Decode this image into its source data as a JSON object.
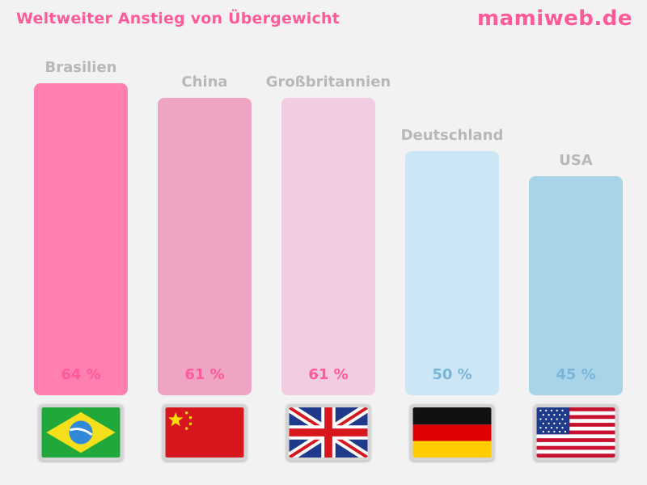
{
  "header": {
    "title": "Weltweiter Anstieg von Übergewicht",
    "brand": "mamiweb.de"
  },
  "chart_data": {
    "type": "bar",
    "title": "Weltweiter Anstieg von Übergewicht",
    "categories": [
      "Brasilien",
      "China",
      "Großbritannien",
      "Deutschland",
      "USA"
    ],
    "values": [
      64,
      61,
      61,
      50,
      45
    ],
    "value_labels": [
      "64 %",
      "61 %",
      "61 %",
      "50 %",
      "45 %"
    ],
    "unit": "%",
    "ylim": [
      0,
      70
    ],
    "grid": false,
    "legend": "none",
    "bar_colors": [
      "#ff80b0",
      "#f0a4c4",
      "#f2cce2",
      "#cce6f6",
      "#a8d4ea"
    ],
    "value_label_colors": [
      "#ff5a99",
      "#ff5a99",
      "#ff5a99",
      "#7ab4d6",
      "#7ab4d6"
    ],
    "label_color": "#b8b8b8",
    "flags": [
      "brazil-flag-icon",
      "china-flag-icon",
      "uk-flag-icon",
      "germany-flag-icon",
      "usa-flag-icon"
    ]
  }
}
